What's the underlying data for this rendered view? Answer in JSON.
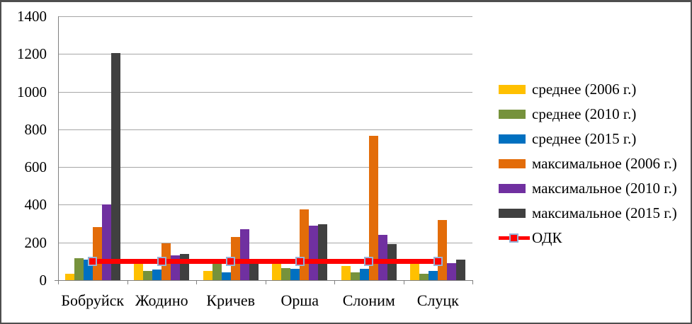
{
  "chart_data": {
    "type": "bar",
    "title": "",
    "xlabel": "",
    "ylabel": "",
    "categories": [
      "Бобруйск",
      "Жодино",
      "Кричев",
      "Орша",
      "Слоним",
      "Слуцк"
    ],
    "series": [
      {
        "name": "среднее (2006 г.)",
        "color": "#FFC000",
        "values": [
          35,
          105,
          50,
          100,
          75,
          100
        ]
      },
      {
        "name": "среднее (2010 г.)",
        "color": "#76923C",
        "values": [
          115,
          50,
          85,
          65,
          40,
          35
        ]
      },
      {
        "name": "среднее (2015 г.)",
        "color": "#0070C0",
        "values": [
          110,
          55,
          40,
          60,
          60,
          50
        ]
      },
      {
        "name": "максимальное (2006 г.)",
        "color": "#E36C09",
        "values": [
          280,
          195,
          230,
          375,
          765,
          320
        ]
      },
      {
        "name": "максимальное (2010 г.)",
        "color": "#7030A0",
        "values": [
          400,
          130,
          270,
          290,
          240,
          90
        ]
      },
      {
        "name": "максимальное (2015 г.)",
        "color": "#404040",
        "values": [
          1205,
          140,
          95,
          295,
          190,
          110
        ]
      }
    ],
    "reference_line": {
      "name": "ОДК",
      "value": 100,
      "color": "#FF0000",
      "marker": "square",
      "marker_border_color": "#95B3D7"
    },
    "ylim": [
      0,
      1400
    ],
    "yticks": [
      0,
      200,
      400,
      600,
      800,
      1000,
      1200,
      1400
    ],
    "grid": "horizontal",
    "legend_position": "right"
  },
  "style_colors": {
    "gridline": "#A6A6A6",
    "axis": "#808080",
    "frame_border": "#4E4E4E",
    "background": "#FFFFFF",
    "text": "#000000"
  }
}
